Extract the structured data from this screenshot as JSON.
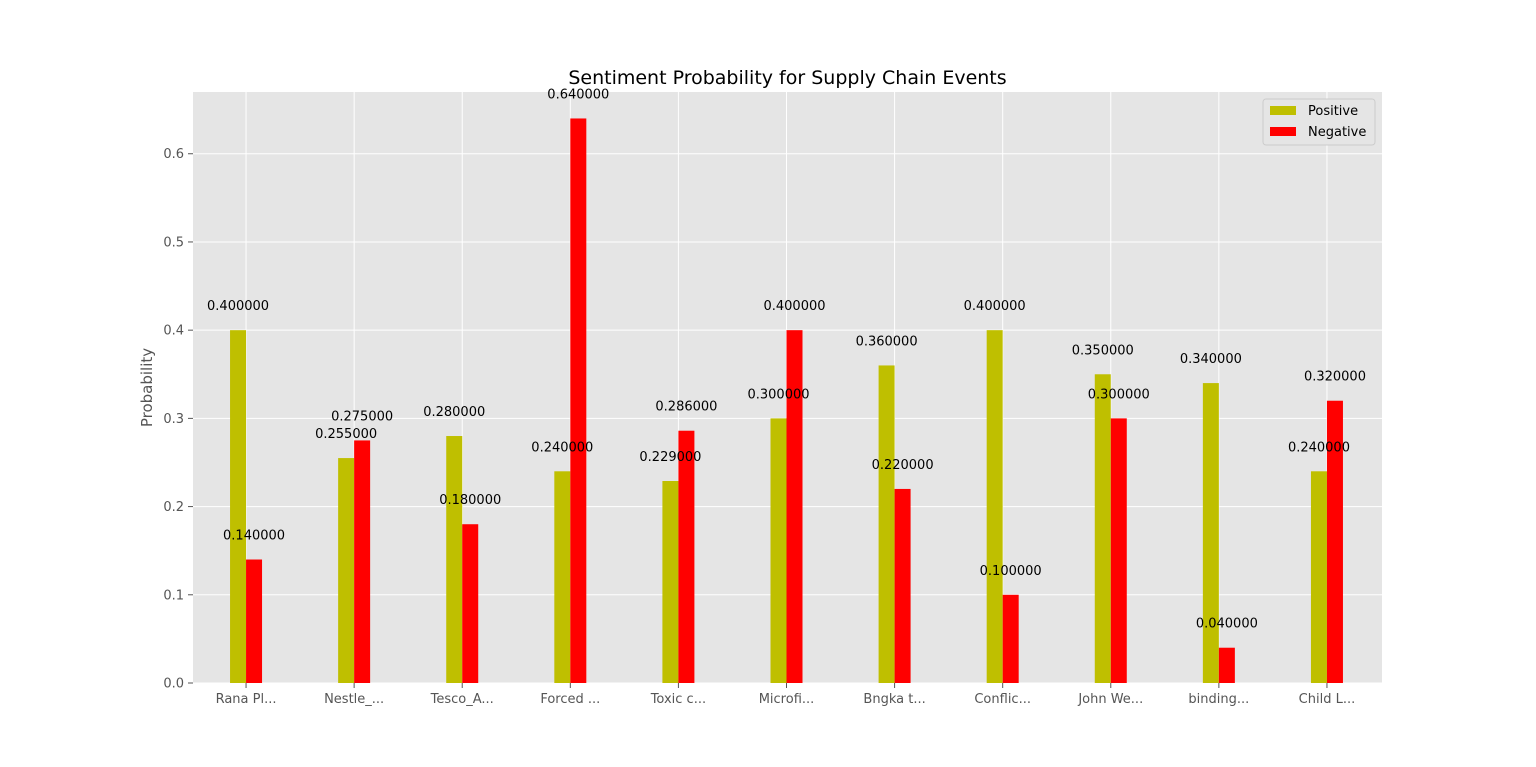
{
  "chart_data": {
    "type": "bar",
    "title": "Sentiment Probability for Supply Chain Events",
    "xlabel": "",
    "ylabel": "Probability",
    "categories": [
      "Rana Pl...",
      "Nestle_...",
      "Tesco_A...",
      "Forced ...",
      "Toxic c...",
      "Microfi...",
      "Bngka t...",
      "Conflic...",
      "John We...",
      "binding...",
      "Child L..."
    ],
    "series": [
      {
        "name": "Positive",
        "color": "#bfbf00",
        "values": [
          0.4,
          0.255,
          0.28,
          0.24,
          0.229,
          0.3,
          0.36,
          0.4,
          0.35,
          0.34,
          0.24
        ],
        "value_labels": [
          "0.400000",
          "0.255000",
          "0.280000",
          "0.240000",
          "0.229000",
          "0.300000",
          "0.360000",
          "0.400000",
          "0.350000",
          "0.340000",
          "0.240000"
        ]
      },
      {
        "name": "Negative",
        "color": "#ff0000",
        "values": [
          0.14,
          0.275,
          0.18,
          0.64,
          0.286,
          0.4,
          0.22,
          0.1,
          0.3,
          0.04,
          0.32
        ],
        "value_labels": [
          "0.140000",
          "0.275000",
          "0.180000",
          "0.640000",
          "0.286000",
          "0.400000",
          "0.220000",
          "0.100000",
          "0.300000",
          "0.040000",
          "0.320000"
        ]
      }
    ],
    "ylim": [
      0,
      0.67
    ],
    "yticks": [
      0.0,
      0.1,
      0.2,
      0.3,
      0.4,
      0.5,
      0.6
    ],
    "ytick_labels": [
      "0.0",
      "0.1",
      "0.2",
      "0.3",
      "0.4",
      "0.5",
      "0.6"
    ],
    "grid": true,
    "legend_position": "top-right",
    "background_color": "#e5e5e5",
    "grid_color": "#ffffff"
  }
}
